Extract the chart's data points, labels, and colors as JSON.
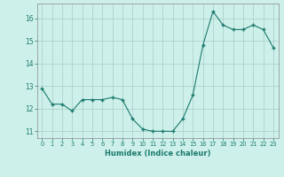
{
  "x": [
    0,
    1,
    2,
    3,
    4,
    5,
    6,
    7,
    8,
    9,
    10,
    11,
    12,
    13,
    14,
    15,
    16,
    17,
    18,
    19,
    20,
    21,
    22,
    23
  ],
  "y": [
    12.9,
    12.2,
    12.2,
    11.9,
    12.4,
    12.4,
    12.4,
    12.5,
    12.4,
    11.55,
    11.1,
    11.0,
    11.0,
    11.0,
    11.55,
    12.6,
    14.8,
    16.3,
    15.7,
    15.5,
    15.5,
    15.7,
    15.5,
    14.7
  ],
  "xlabel": "Humidex (Indice chaleur)",
  "line_color": "#1a7a6e",
  "marker_color": "#1a7a6e",
  "bg_color": "#cef0ea",
  "grid_color": "#aaccc6",
  "ylim": [
    10.7,
    16.65
  ],
  "xlim": [
    -0.5,
    23.5
  ],
  "yticks": [
    11,
    12,
    13,
    14,
    15,
    16
  ],
  "xtick_labels": [
    "0",
    "1",
    "2",
    "3",
    "4",
    "5",
    "6",
    "7",
    "8",
    "9",
    "10",
    "11",
    "12",
    "13",
    "14",
    "15",
    "16",
    "17",
    "18",
    "19",
    "20",
    "21",
    "22",
    "23"
  ]
}
